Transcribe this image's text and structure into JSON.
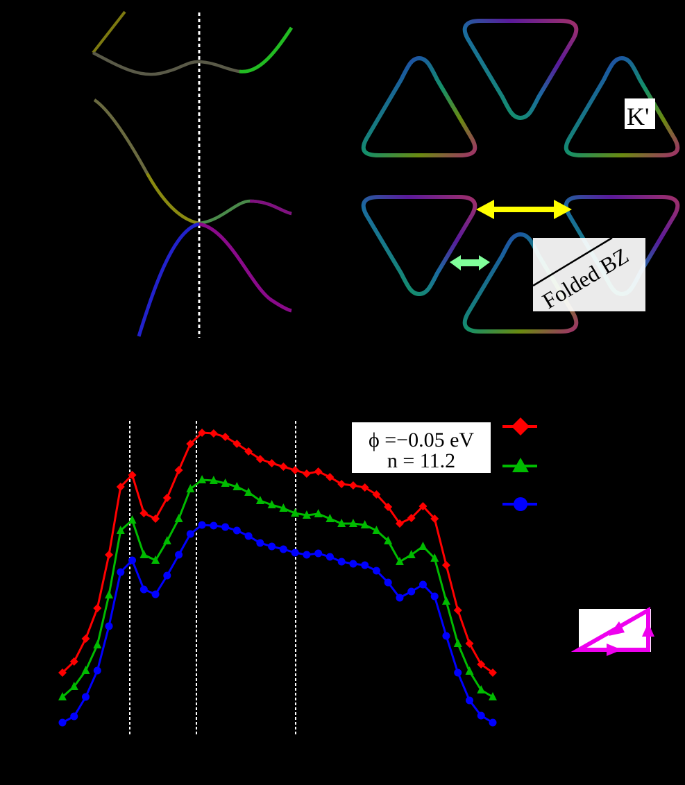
{
  "panels": {
    "band_structure": {
      "marker_line_x": 287,
      "label_visible": "none"
    },
    "fermi_surface": {
      "k_prime_label": "K'",
      "folded_bz_label": "Folded BZ",
      "arrow_colors": {
        "long": "#ffff00",
        "short": "#80ff9a"
      }
    },
    "inset_path": {
      "color": "#ee00ee"
    }
  },
  "legend_box": {
    "line1": "ϕ =−0.05 eV",
    "line2": "n = 11.2"
  },
  "chart_data": {
    "type": "line",
    "title": "",
    "xlabel": "",
    "ylabel": "",
    "grid": false,
    "legend_position": "top-right (labels not visible)",
    "vertical_reference_lines_x_index": [
      6,
      12,
      21
    ],
    "x": [
      0,
      1,
      2,
      3,
      4,
      5,
      6,
      7,
      8,
      9,
      10,
      11,
      12,
      13,
      14,
      15,
      16,
      17,
      18,
      19,
      20,
      21,
      22,
      23,
      24,
      25,
      26,
      27,
      28,
      29,
      30,
      31,
      32,
      33,
      34,
      35,
      36,
      37
    ],
    "series": [
      {
        "name": "red",
        "color": "#ff0000",
        "marker": "diamond",
        "values": [
          0.9,
          1.06,
          1.39,
          1.83,
          2.6,
          3.58,
          3.75,
          3.2,
          3.12,
          3.42,
          3.82,
          4.2,
          4.36,
          4.35,
          4.3,
          4.2,
          4.09,
          3.98,
          3.92,
          3.87,
          3.82,
          3.77,
          3.8,
          3.72,
          3.62,
          3.6,
          3.57,
          3.47,
          3.29,
          3.05,
          3.13,
          3.3,
          3.12,
          2.45,
          1.8,
          1.32,
          1.02,
          0.9
        ]
      },
      {
        "name": "green",
        "color": "#00bb00",
        "marker": "triangle",
        "values": [
          0.55,
          0.7,
          0.93,
          1.3,
          2.02,
          2.95,
          3.1,
          2.6,
          2.52,
          2.8,
          3.12,
          3.55,
          3.68,
          3.67,
          3.63,
          3.58,
          3.5,
          3.38,
          3.32,
          3.27,
          3.2,
          3.17,
          3.19,
          3.12,
          3.05,
          3.05,
          3.03,
          2.95,
          2.8,
          2.5,
          2.6,
          2.72,
          2.55,
          1.93,
          1.32,
          0.92,
          0.65,
          0.55
        ]
      },
      {
        "name": "blue",
        "color": "#0000ff",
        "marker": "circle",
        "values": [
          0.18,
          0.27,
          0.55,
          0.93,
          1.57,
          2.35,
          2.52,
          2.1,
          2.03,
          2.3,
          2.6,
          2.9,
          3.03,
          3.02,
          3.0,
          2.95,
          2.87,
          2.77,
          2.72,
          2.68,
          2.63,
          2.6,
          2.62,
          2.57,
          2.5,
          2.47,
          2.45,
          2.37,
          2.2,
          1.98,
          2.07,
          2.17,
          2.0,
          1.43,
          0.9,
          0.5,
          0.28,
          0.18
        ]
      }
    ],
    "ylim": [
      0,
      4.8
    ]
  }
}
